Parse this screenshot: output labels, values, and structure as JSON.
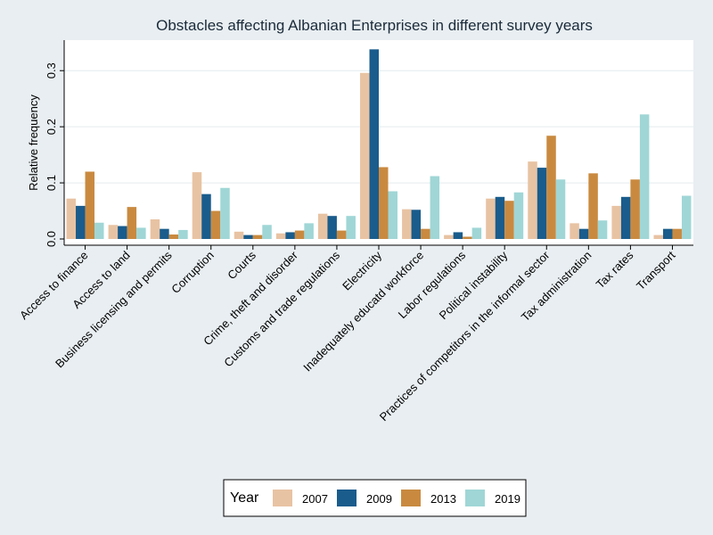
{
  "chart_data": {
    "type": "bar",
    "title": "Obstacles affecting Albanian Enterprises in different survey years",
    "ylabel": "Relative frequency",
    "xlabel": "",
    "ylim": [
      0,
      0.35
    ],
    "yticks": [
      0,
      0.1,
      0.2,
      0.3
    ],
    "ytick_labels": [
      "0.0",
      "0.1",
      "0.2",
      "0.3"
    ],
    "grid": true,
    "legend": {
      "title": "Year",
      "position": "bottom"
    },
    "categories": [
      "Access to finance",
      "Access to land",
      "Business licensing and permits",
      "Corruption",
      "Courts",
      "Crime, theft and disorder",
      "Customs and trade regulations",
      "Electricity",
      "Inadequately educatd workforce",
      "Labor regulations",
      "Political instability",
      "Practices of competitors in the informal sector",
      "Tax administration",
      "Tax rates",
      "Transport"
    ],
    "series": [
      {
        "name": "2007",
        "color": "#e8c3a3",
        "values": [
          0.072,
          0.025,
          0.035,
          0.119,
          0.013,
          0.01,
          0.045,
          0.296,
          0.053,
          0.007,
          0.072,
          0.138,
          0.028,
          0.059,
          0.007
        ]
      },
      {
        "name": "2009",
        "color": "#1a5c8c",
        "values": [
          0.059,
          0.023,
          0.018,
          0.08,
          0.007,
          0.012,
          0.041,
          0.338,
          0.052,
          0.012,
          0.075,
          0.127,
          0.018,
          0.075,
          0.018
        ]
      },
      {
        "name": "2013",
        "color": "#c98a40",
        "values": [
          0.12,
          0.057,
          0.008,
          0.05,
          0.007,
          0.015,
          0.015,
          0.128,
          0.018,
          0.004,
          0.068,
          0.184,
          0.117,
          0.106,
          0.018
        ]
      },
      {
        "name": "2019",
        "color": "#a0d6d6",
        "values": [
          0.029,
          0.02,
          0.016,
          0.091,
          0.025,
          0.028,
          0.041,
          0.085,
          0.112,
          0.02,
          0.083,
          0.106,
          0.033,
          0.222,
          0.077
        ]
      }
    ]
  }
}
